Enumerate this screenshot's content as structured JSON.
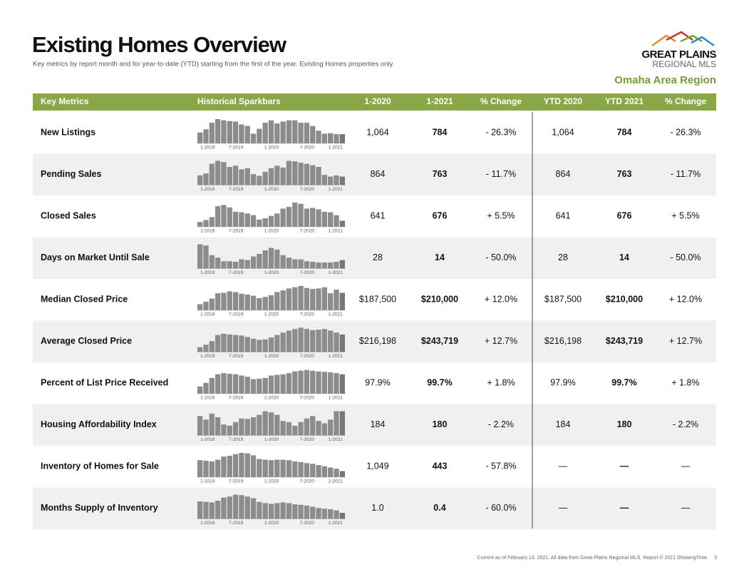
{
  "header": {
    "title": "Existing Homes Overview",
    "subtitle": "Key metrics by report month and for year-to-date (YTD) starting from the first of the year. Existing Homes properties only.",
    "logo_line1": "GREAT PLAINS",
    "logo_line2": "REGIONAL MLS",
    "region": "Omaha Area Region"
  },
  "table": {
    "columns": [
      "Key Metrics",
      "Historical Sparkbars",
      "1-2020",
      "1-2021",
      "% Change",
      "YTD 2020",
      "YTD 2021",
      "% Change"
    ],
    "spark_labels": [
      "1-2019",
      "7-2019",
      "1-2020",
      "7-2020",
      "1-2021"
    ],
    "rows": [
      {
        "metric": "New Listings",
        "spark": [
          45,
          58,
          85,
          100,
          95,
          92,
          90,
          78,
          72,
          40,
          60,
          85,
          95,
          82,
          90,
          95,
          95,
          85,
          85,
          72,
          52,
          40,
          42,
          38,
          38
        ],
        "values": [
          "1,064",
          "784",
          "- 26.3%",
          "1,064",
          "784",
          "- 26.3%"
        ]
      },
      {
        "metric": "Pending Sales",
        "spark": [
          40,
          48,
          88,
          100,
          95,
          75,
          80,
          65,
          70,
          45,
          38,
          55,
          70,
          80,
          72,
          100,
          98,
          92,
          88,
          82,
          75,
          42,
          35,
          40,
          35
        ],
        "values": [
          "864",
          "763",
          "- 11.7%",
          "864",
          "763",
          "- 11.7%"
        ]
      },
      {
        "metric": "Closed Sales",
        "spark": [
          20,
          28,
          40,
          85,
          90,
          80,
          62,
          60,
          55,
          48,
          30,
          35,
          45,
          55,
          75,
          82,
          100,
          95,
          75,
          78,
          72,
          62,
          60,
          48,
          25
        ],
        "values": [
          "641",
          "676",
          "+ 5.5%",
          "641",
          "676",
          "+ 5.5%"
        ]
      },
      {
        "metric": "Days on Market Until Sale",
        "spark": [
          100,
          95,
          55,
          45,
          30,
          30,
          28,
          38,
          35,
          50,
          60,
          75,
          85,
          78,
          55,
          45,
          38,
          38,
          30,
          28,
          25,
          25,
          25,
          28,
          35
        ],
        "values": [
          "28",
          "14",
          "- 50.0%",
          "28",
          "14",
          "- 50.0%"
        ]
      },
      {
        "metric": "Median Closed Price",
        "spark": [
          25,
          35,
          48,
          70,
          72,
          78,
          75,
          68,
          65,
          60,
          50,
          55,
          62,
          75,
          82,
          90,
          95,
          100,
          92,
          88,
          90,
          95,
          70,
          85,
          72
        ],
        "values": [
          "$187,500",
          "$210,000",
          "+ 12.0%",
          "$187,500",
          "$210,000",
          "+ 12.0%"
        ]
      },
      {
        "metric": "Average Closed Price",
        "spark": [
          20,
          30,
          45,
          70,
          75,
          72,
          70,
          68,
          62,
          55,
          50,
          52,
          60,
          70,
          80,
          88,
          95,
          100,
          95,
          90,
          92,
          95,
          88,
          80,
          72
        ],
        "values": [
          "$216,198",
          "$243,719",
          "+ 12.7%",
          "$216,198",
          "$243,719",
          "+ 12.7%"
        ]
      },
      {
        "metric": "Percent of List Price Received",
        "spark": [
          30,
          45,
          65,
          80,
          85,
          82,
          80,
          75,
          70,
          60,
          62,
          65,
          75,
          78,
          80,
          85,
          92,
          95,
          98,
          95,
          92,
          90,
          88,
          85,
          80
        ],
        "values": [
          "97.9%",
          "99.7%",
          "+ 1.8%",
          "97.9%",
          "99.7%",
          "+ 1.8%"
        ]
      },
      {
        "metric": "Housing Affordability Index",
        "spark": [
          80,
          65,
          90,
          75,
          45,
          40,
          55,
          70,
          68,
          75,
          85,
          100,
          95,
          85,
          60,
          55,
          40,
          55,
          70,
          80,
          60,
          50,
          65,
          100,
          100
        ],
        "values": [
          "184",
          "180",
          "- 2.2%",
          "184",
          "180",
          "- 2.2%"
        ]
      },
      {
        "metric": "Inventory of Homes for Sale",
        "spark": [
          70,
          68,
          65,
          72,
          85,
          88,
          95,
          100,
          98,
          90,
          75,
          72,
          70,
          72,
          72,
          70,
          65,
          62,
          58,
          55,
          50,
          45,
          40,
          35,
          25
        ],
        "values": [
          "1,049",
          "443",
          "- 57.8%",
          "—",
          "—",
          "—"
        ]
      },
      {
        "metric": "Months Supply of Inventory",
        "spark": [
          72,
          70,
          68,
          75,
          88,
          92,
          100,
          98,
          92,
          85,
          70,
          65,
          62,
          65,
          68,
          65,
          60,
          58,
          55,
          50,
          45,
          42,
          40,
          35,
          25
        ],
        "values": [
          "1.0",
          "0.4",
          "- 60.0%",
          "—",
          "—",
          "—"
        ]
      }
    ]
  },
  "footer": {
    "note": "Current as of February 13, 2021. All data from Great Plains Regional MLS. Report © 2021 ShowingTime.",
    "page": "3"
  }
}
